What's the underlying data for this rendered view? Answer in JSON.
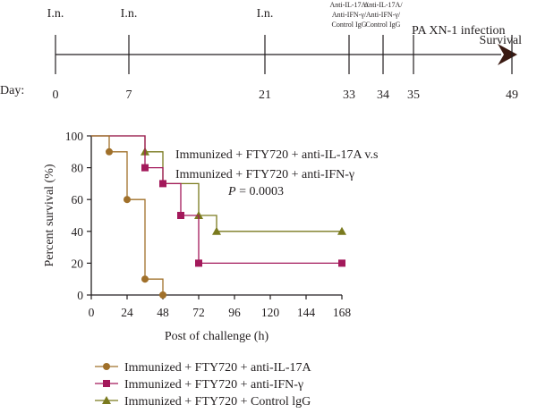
{
  "timeline": {
    "day_prefix": "Day:",
    "end_label": "Survival",
    "infection_label": "PA XN-1 infection",
    "ticks": [
      {
        "day": "0",
        "event_lines": [
          "I.n."
        ]
      },
      {
        "day": "7",
        "event_lines": [
          "I.n."
        ]
      },
      {
        "day": "21",
        "event_lines": [
          "I.n."
        ]
      },
      {
        "day": "33",
        "event_lines": [
          "Anti-IL-17A/",
          "Anti-IFN-γ/",
          "Control IgG"
        ]
      },
      {
        "day": "34",
        "event_lines": [
          "Anti-IL-17A/",
          "Anti-IFN-γ/",
          "Control IgG"
        ]
      },
      {
        "day": "35",
        "event_lines": []
      },
      {
        "day": "49",
        "event_lines": []
      }
    ]
  },
  "annotation": {
    "line1": "Immunized + FTY720 + anti-IL-17A v.s",
    "line2": "Immunized + FTY720 + anti-IFN-γ",
    "p_italic": "P",
    "p_rest": " = 0.0003"
  },
  "chart_data": {
    "type": "line",
    "subtype": "kaplan-meier-step",
    "xlabel": "Post of challenge (h)",
    "ylabel": "Percent survival (%)",
    "xlim": [
      0,
      168
    ],
    "ylim": [
      0,
      100
    ],
    "xticks": [
      0,
      24,
      48,
      72,
      96,
      120,
      144,
      168
    ],
    "yticks": [
      0,
      20,
      40,
      60,
      80,
      100
    ],
    "grid": false,
    "legend_position": "bottom",
    "series": [
      {
        "name": "Immunized + FTY720 + anti-IL-17A",
        "color": "#a0702a",
        "marker": "circle",
        "steps": [
          [
            0,
            100
          ],
          [
            12,
            90
          ],
          [
            24,
            60
          ],
          [
            36,
            10
          ],
          [
            48,
            0
          ]
        ],
        "markers": [
          [
            12,
            90
          ],
          [
            24,
            60
          ],
          [
            36,
            10
          ],
          [
            48,
            0
          ]
        ]
      },
      {
        "name": "Immunized + FTY720 + anti-IFN-γ",
        "color": "#a3195b",
        "marker": "square",
        "steps": [
          [
            0,
            100
          ],
          [
            36,
            80
          ],
          [
            48,
            70
          ],
          [
            60,
            50
          ],
          [
            72,
            20
          ],
          [
            168,
            20
          ]
        ],
        "markers": [
          [
            36,
            80
          ],
          [
            48,
            70
          ],
          [
            60,
            50
          ],
          [
            72,
            20
          ],
          [
            168,
            20
          ]
        ]
      },
      {
        "name": "Immunized + FTY720 + Control lgG",
        "color": "#7a7a1e",
        "marker": "triangle",
        "steps": [
          [
            0,
            100
          ],
          [
            36,
            90
          ],
          [
            48,
            70
          ],
          [
            72,
            50
          ],
          [
            84,
            40
          ],
          [
            168,
            40
          ]
        ],
        "markers": [
          [
            36,
            90
          ],
          [
            72,
            50
          ],
          [
            84,
            40
          ],
          [
            168,
            40
          ]
        ]
      }
    ]
  }
}
